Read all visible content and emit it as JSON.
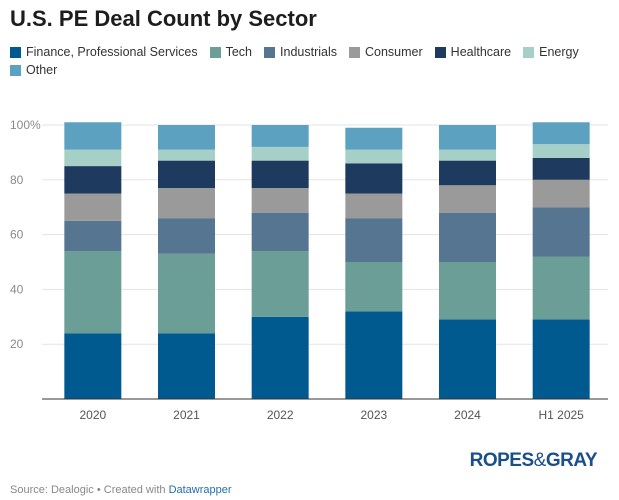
{
  "chart_data": {
    "type": "bar",
    "stacked": true,
    "title": "U.S. PE Deal Count by Sector",
    "categories": [
      "2020",
      "2021",
      "2022",
      "2023",
      "2024",
      "H1 2025"
    ],
    "series": [
      {
        "name": "Finance, Professional Services",
        "color": "#005a8f",
        "values": [
          24,
          24,
          30,
          32,
          29,
          29
        ]
      },
      {
        "name": "Tech",
        "color": "#6b9e97",
        "values": [
          30,
          29,
          24,
          18,
          21,
          23
        ]
      },
      {
        "name": "Industrials",
        "color": "#567590",
        "values": [
          11,
          13,
          14,
          16,
          18,
          18
        ]
      },
      {
        "name": "Consumer",
        "color": "#9a9a9a",
        "values": [
          10,
          11,
          9,
          9,
          10,
          10
        ]
      },
      {
        "name": "Healthcare",
        "color": "#1f3a5f",
        "values": [
          10,
          10,
          10,
          11,
          9,
          8
        ]
      },
      {
        "name": "Energy",
        "color": "#a6cfc8",
        "values": [
          6,
          4,
          5,
          5,
          4,
          5
        ]
      },
      {
        "name": "Other",
        "color": "#5ca2c0",
        "values": [
          10,
          9,
          8,
          8,
          9,
          8
        ]
      }
    ],
    "ylim": [
      0,
      100
    ],
    "yticks": [
      "20",
      "40",
      "60",
      "80",
      "100%"
    ],
    "ytick_values": [
      20,
      40,
      60,
      80,
      100
    ],
    "grid": true,
    "legend_position": "top"
  },
  "footer": {
    "source": "Source: Dealogic",
    "separator": " • Created with ",
    "tool": "Datawrapper"
  },
  "brand": {
    "left": "ROPES",
    "amp": "&",
    "right": "GRAY"
  }
}
